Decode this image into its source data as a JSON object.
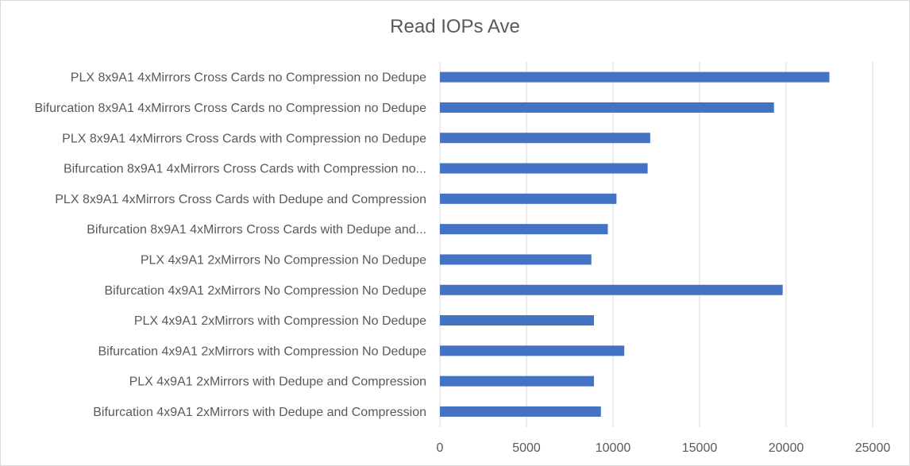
{
  "chart_data": {
    "type": "bar",
    "orientation": "horizontal",
    "title": "Read IOPs Ave",
    "categories": [
      "PLX 8x9A1 4xMirrors Cross Cards no Compression no Dedupe",
      "Bifurcation 8x9A1 4xMirrors Cross Cards no Compression no Dedupe",
      "PLX 8x9A1 4xMirrors Cross Cards with Compression no Dedupe",
      "Bifurcation 8x9A1 4xMirrors Cross Cards with Compression no...",
      "PLX 8x9A1 4xMirrors Cross Cards with Dedupe and Compression",
      "Bifurcation 8x9A1 4xMirrors Cross Cards with Dedupe and...",
      "PLX 4x9A1 2xMirrors No Compression No Dedupe",
      "Bifurcation 4x9A1 2xMirrors No Compression No Dedupe",
      "PLX 4x9A1 2xMirrors with Compression No Dedupe",
      "Bifurcation 4x9A1 2xMirrors with Compression No Dedupe",
      "PLX 4x9A1 2xMirrors with Dedupe and Compression",
      "Bifurcation 4x9A1 2xMirrors with Dedupe and Compression"
    ],
    "values": [
      22500,
      19300,
      12150,
      12000,
      10200,
      9700,
      8750,
      19800,
      8900,
      10650,
      8900,
      9300
    ],
    "xlim": [
      0,
      25000
    ],
    "xticks": [
      "0",
      "5000",
      "10000",
      "15000",
      "20000",
      "25000"
    ],
    "xlabel": "",
    "ylabel": "",
    "grid": true,
    "legend": "none",
    "bar_color": "#4472c4",
    "grid_color": "#d9d9d9"
  }
}
